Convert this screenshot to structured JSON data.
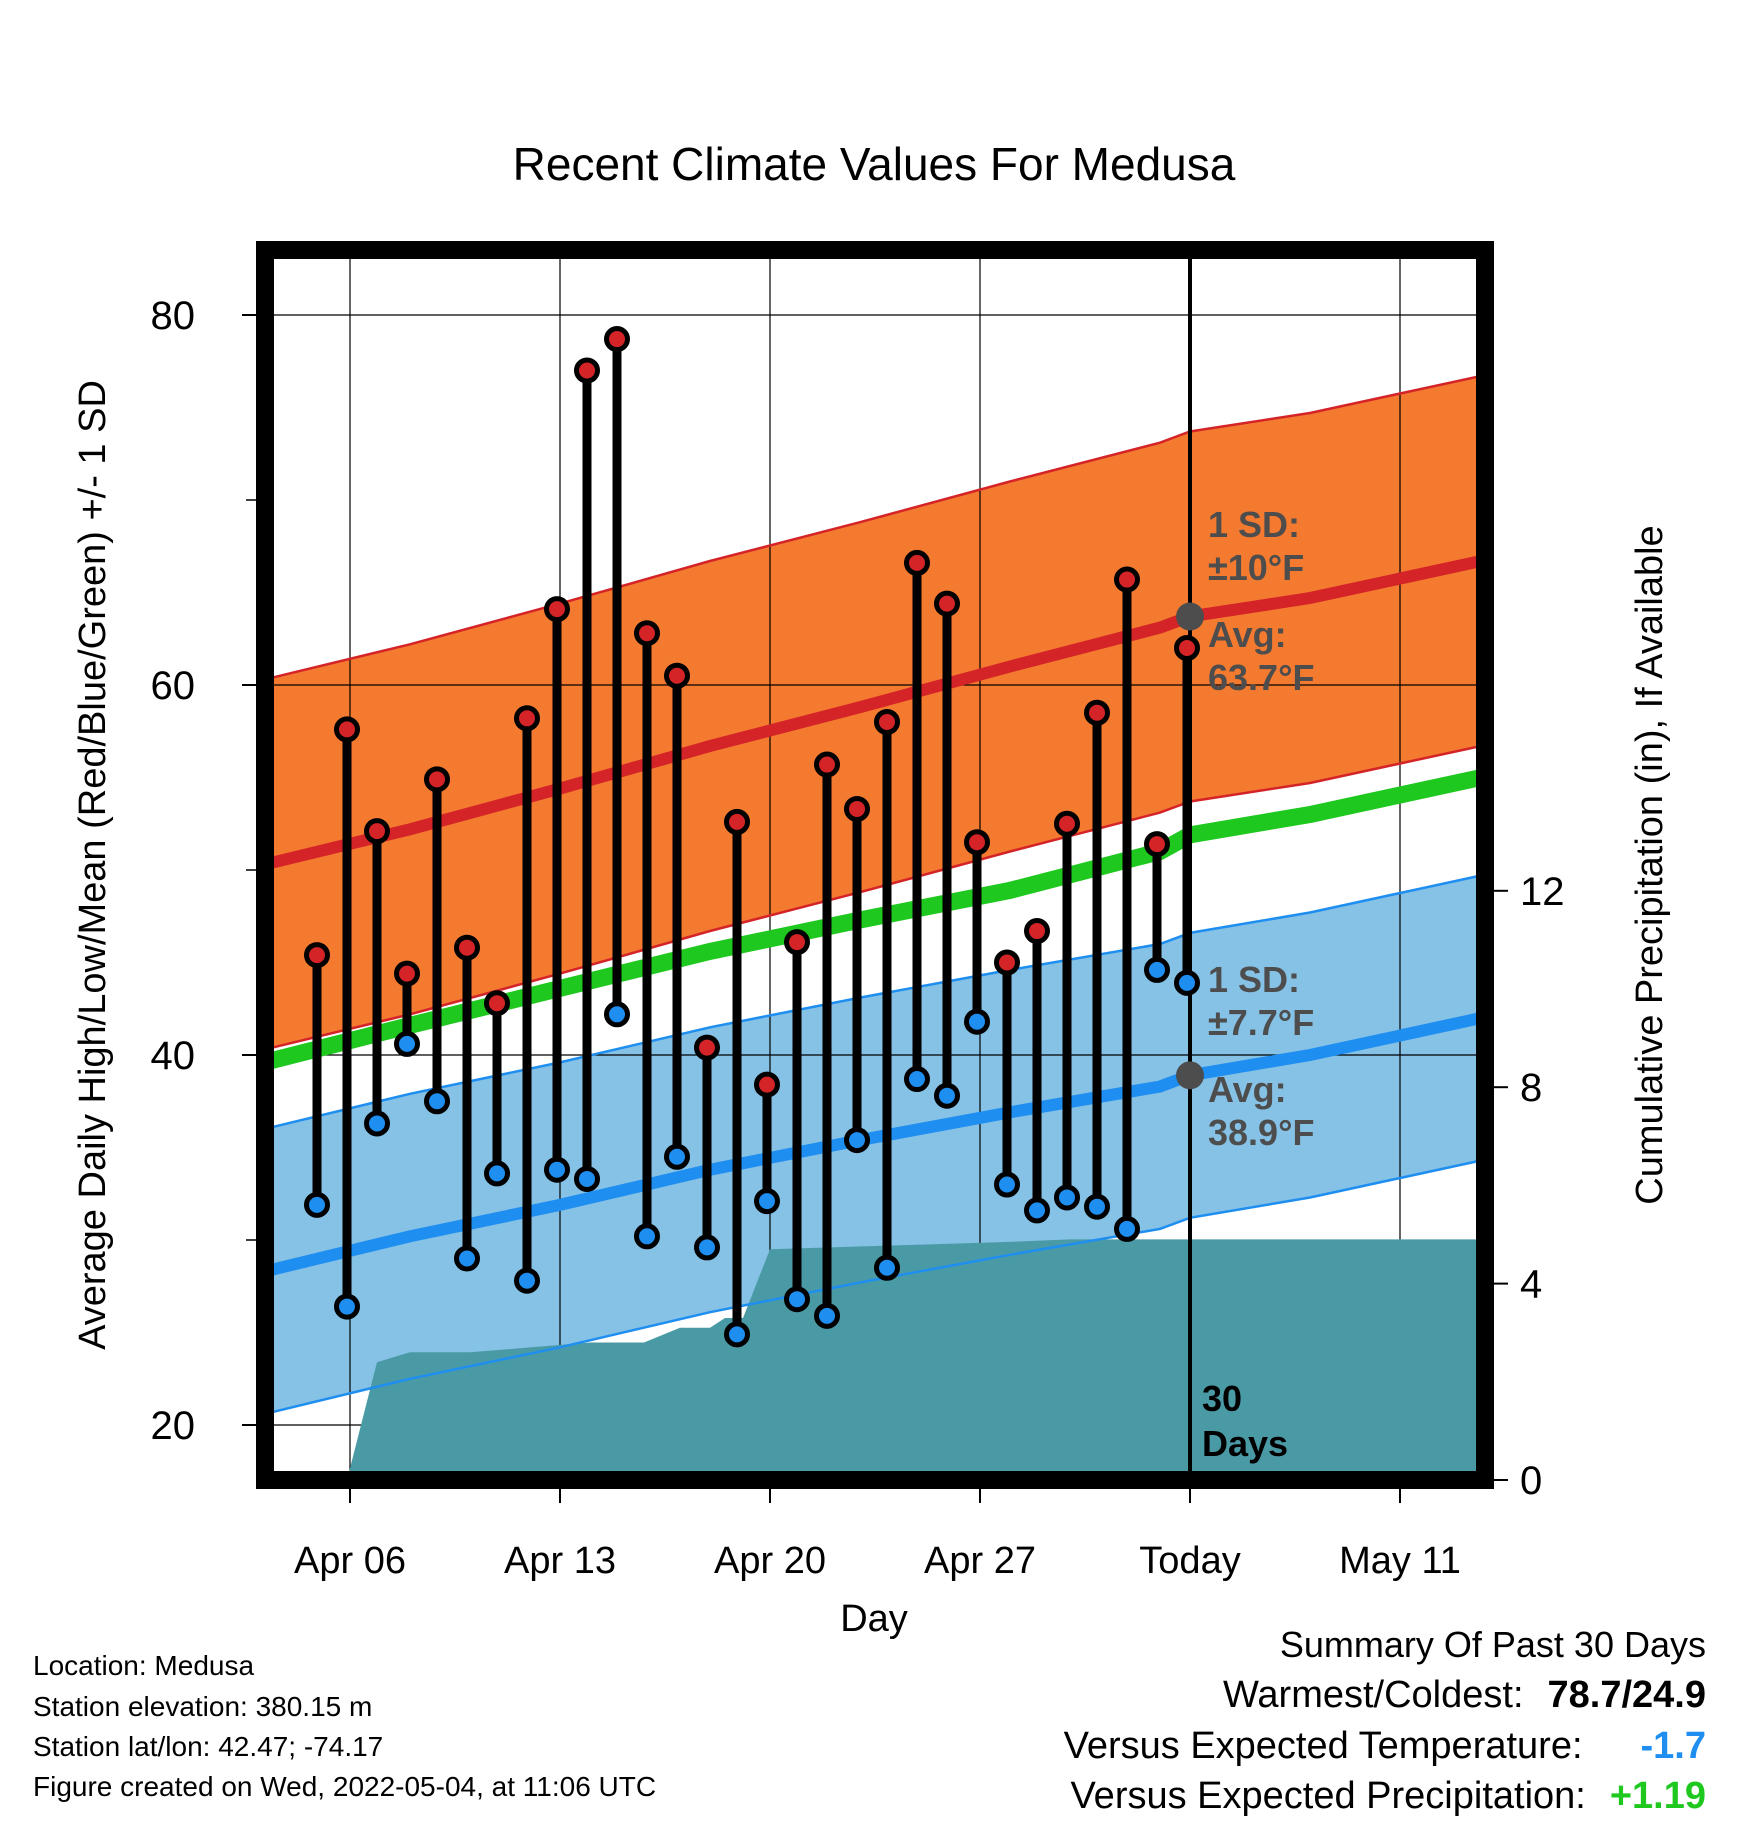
{
  "chart_data": {
    "type": "line",
    "title": "Recent Climate Values For Medusa",
    "xlabel": "Day",
    "ylabel_left": "Average Daily High/Low/Mean (Red/Blue/Green) +/- 1 SD",
    "ylabel_right": "Cumulative Precipitation (in), If Available",
    "x_ticks": [
      {
        "day": 6,
        "label": "Apr 06"
      },
      {
        "day": 13,
        "label": "Apr 13"
      },
      {
        "day": 20,
        "label": "Apr 20"
      },
      {
        "day": 27,
        "label": "Apr 27"
      },
      {
        "day": 34,
        "label": "Today"
      },
      {
        "day": 41,
        "label": "May 11"
      }
    ],
    "xlim": [
      2.9,
      43.7
    ],
    "ylim_left": [
      17.4,
      85
    ],
    "yticks_left": [
      20,
      40,
      60,
      80
    ],
    "ylim_right": [
      0,
      25.35
    ],
    "yticks_right": [
      0,
      4,
      8,
      12
    ],
    "today_day": 34,
    "today_label": "30 Days",
    "high_annotation": {
      "sd_label": "1 SD:",
      "sd_value": "±10°F",
      "avg_label": "Avg:",
      "avg_value": "63.7°F",
      "avg": 63.7
    },
    "low_annotation": {
      "sd_label": "1 SD:",
      "sd_value": "±7.7°F",
      "avg_label": "Avg:",
      "avg_value": "38.9°F",
      "avg": 38.9
    },
    "normal_high": [
      [
        2.9,
        50.2
      ],
      [
        8,
        52.2
      ],
      [
        13,
        54.4
      ],
      [
        18,
        56.7
      ],
      [
        23,
        58.8
      ],
      [
        28,
        61.0
      ],
      [
        33,
        63.1
      ],
      [
        34,
        63.7
      ],
      [
        38,
        64.7
      ],
      [
        43.7,
        66.7
      ]
    ],
    "normal_high_sd": 10,
    "normal_low": [
      [
        2.9,
        28.2
      ],
      [
        8,
        30.2
      ],
      [
        13,
        31.9
      ],
      [
        18,
        33.8
      ],
      [
        23,
        35.4
      ],
      [
        28,
        36.9
      ],
      [
        33,
        38.3
      ],
      [
        34,
        38.9
      ],
      [
        38,
        40.0
      ],
      [
        43.7,
        42.0
      ]
    ],
    "normal_low_sd": 7.7,
    "normal_mean": [
      [
        2.9,
        39.5
      ],
      [
        8,
        41.6
      ],
      [
        13,
        43.6
      ],
      [
        18,
        45.6
      ],
      [
        23,
        47.3
      ],
      [
        28,
        48.9
      ],
      [
        33,
        51.0
      ],
      [
        34,
        51.9
      ],
      [
        38,
        53.0
      ],
      [
        43.7,
        55.0
      ]
    ],
    "precip_cumulative": [
      [
        5.9,
        0
      ],
      [
        6.9,
        2.4
      ],
      [
        8,
        2.6
      ],
      [
        10,
        2.6
      ],
      [
        12,
        2.7
      ],
      [
        14,
        2.8
      ],
      [
        15.8,
        2.8
      ],
      [
        17,
        3.1
      ],
      [
        18,
        3.1
      ],
      [
        18.5,
        3.3
      ],
      [
        19.1,
        3.3
      ],
      [
        20,
        4.7
      ],
      [
        28,
        4.85
      ],
      [
        30,
        4.9
      ],
      [
        33,
        4.9
      ],
      [
        43.7,
        4.9
      ]
    ],
    "daily": [
      {
        "day": 4.9,
        "high": 45.4,
        "low": 31.9
      },
      {
        "day": 5.9,
        "high": 57.6,
        "low": 26.4
      },
      {
        "day": 6.9,
        "high": 52.1,
        "low": 36.3
      },
      {
        "day": 7.9,
        "high": 44.4,
        "low": 40.6
      },
      {
        "day": 8.9,
        "high": 54.9,
        "low": 37.5
      },
      {
        "day": 9.9,
        "high": 45.8,
        "low": 29.0
      },
      {
        "day": 10.9,
        "high": 42.8,
        "low": 33.6
      },
      {
        "day": 11.9,
        "high": 58.2,
        "low": 27.8
      },
      {
        "day": 12.9,
        "high": 64.1,
        "low": 33.8
      },
      {
        "day": 13.9,
        "high": 77.0,
        "low": 33.3
      },
      {
        "day": 14.9,
        "high": 78.7,
        "low": 42.2
      },
      {
        "day": 15.9,
        "high": 62.8,
        "low": 30.2
      },
      {
        "day": 16.9,
        "high": 60.5,
        "low": 34.5
      },
      {
        "day": 17.9,
        "high": 40.4,
        "low": 29.6
      },
      {
        "day": 18.9,
        "high": 52.6,
        "low": 24.9
      },
      {
        "day": 19.9,
        "high": 38.4,
        "low": 32.1
      },
      {
        "day": 20.9,
        "high": 46.1,
        "low": 26.8
      },
      {
        "day": 21.9,
        "high": 55.7,
        "low": 25.9
      },
      {
        "day": 22.9,
        "high": 53.3,
        "low": 35.4
      },
      {
        "day": 23.9,
        "high": 58.0,
        "low": 28.5
      },
      {
        "day": 24.9,
        "high": 66.6,
        "low": 38.7
      },
      {
        "day": 25.9,
        "high": 64.4,
        "low": 37.8
      },
      {
        "day": 26.9,
        "high": 51.5,
        "low": 41.8
      },
      {
        "day": 27.9,
        "high": 45.0,
        "low": 33.0
      },
      {
        "day": 28.9,
        "high": 46.7,
        "low": 31.6
      },
      {
        "day": 29.9,
        "high": 52.5,
        "low": 32.3
      },
      {
        "day": 30.9,
        "high": 58.5,
        "low": 31.8
      },
      {
        "day": 31.9,
        "high": 65.7,
        "low": 30.6
      },
      {
        "day": 32.9,
        "high": 51.4,
        "low": 44.6
      },
      {
        "day": 33.9,
        "high": 62.0,
        "low": 43.9
      }
    ]
  },
  "info": {
    "location": "Location: Medusa",
    "elevation": "Station elevation: 380.15 m",
    "latlon": "Station lat/lon: 42.47; -74.17",
    "created": "Figure created on Wed, 2022-05-04, at 11:06 UTC"
  },
  "summary": {
    "title": "Summary Of Past 30 Days",
    "warm_cold_label": "Warmest/Coldest:",
    "warm_cold_value": "78.7/24.9",
    "temp_label": "Versus Expected Temperature:",
    "temp_value": "-1.7",
    "precip_label": "Versus Expected Precipitation:",
    "precip_value": "+1.19"
  },
  "colors": {
    "high_band": "#f47a30",
    "high_line": "#d42428",
    "low_band": "#86c1e6",
    "low_line": "#1e8ef0",
    "mean_line": "#1fc81e",
    "precip_fill": "#4a9aa6",
    "frame": "#000000",
    "annotation": "#4d4d4d",
    "temp_value": "#1e8ef0",
    "precip_value": "#1fc81e"
  }
}
